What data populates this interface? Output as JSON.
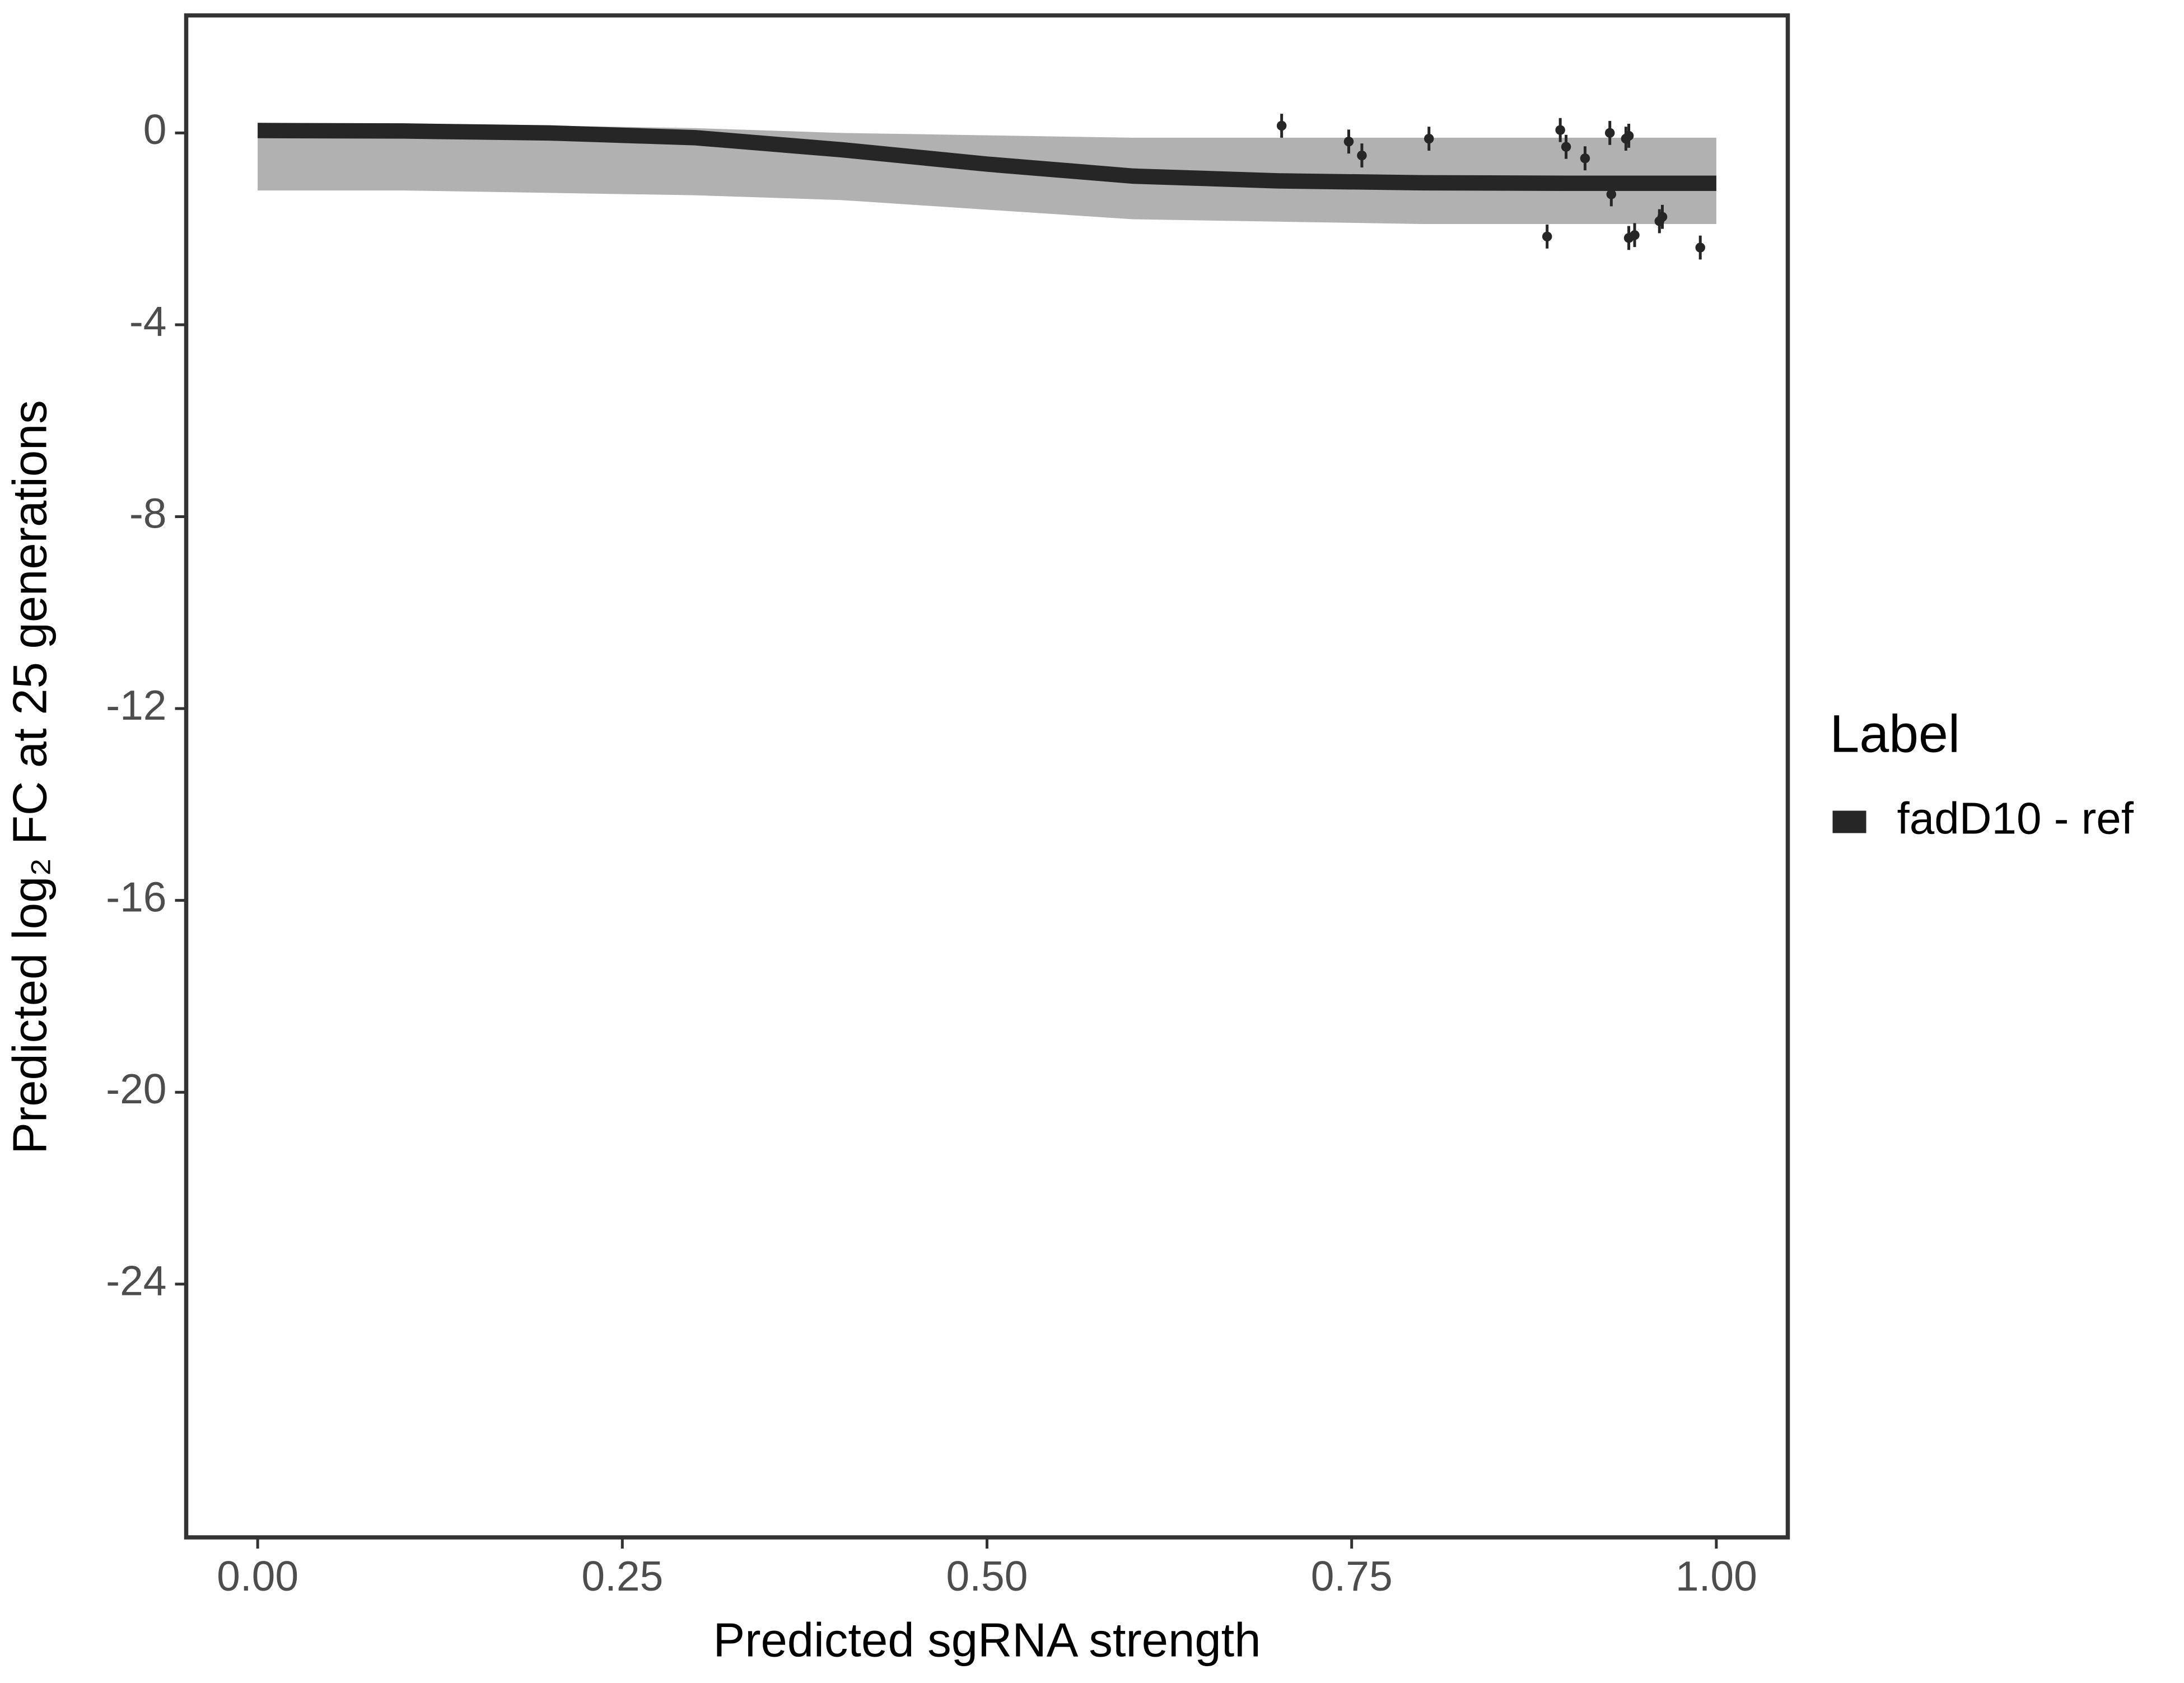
{
  "chart_data": {
    "type": "scatter",
    "x_label": "Predicted sgRNA strength",
    "y_label": "Predicted  log₂ FC at 25 generations",
    "xlim": [
      -0.049,
      1.049
    ],
    "ylim": [
      -29.28,
      2.45
    ],
    "xticks": [
      {
        "value": 0,
        "label": "0.00"
      },
      {
        "value": 0.25,
        "label": "0.25"
      },
      {
        "value": 0.5,
        "label": "0.50"
      },
      {
        "value": 0.75,
        "label": "0.75"
      },
      {
        "value": 1,
        "label": "1.00"
      }
    ],
    "yticks": [
      0,
      -4,
      -8,
      -12,
      -16,
      -20,
      -24
    ],
    "grid": false,
    "legend_title": "Label",
    "legend_position": "right",
    "band": {
      "color": "#9e9e9e",
      "x": [
        0,
        0.1,
        0.2,
        0.3,
        0.4,
        0.5,
        0.6,
        0.7,
        0.8,
        0.9,
        1.0
      ],
      "upper": [
        0.2,
        0.2,
        0.15,
        0.1,
        0.0,
        -0.05,
        -0.1,
        -0.1,
        -0.1,
        -0.1,
        -0.1
      ],
      "lower": [
        -1.2,
        -1.2,
        -1.25,
        -1.3,
        -1.4,
        -1.6,
        -1.8,
        -1.85,
        -1.9,
        -1.9,
        -1.9
      ]
    },
    "series": [
      {
        "name": "fadD10 - ref",
        "color": "#262626",
        "x": [
          0,
          0.1,
          0.2,
          0.3,
          0.4,
          0.5,
          0.6,
          0.7,
          0.8,
          0.9,
          1.0
        ],
        "values": [
          0.05,
          0.04,
          0.0,
          -0.1,
          -0.35,
          -0.65,
          -0.9,
          -1.0,
          -1.04,
          -1.05,
          -1.05
        ],
        "points": {
          "x": [
            0.702,
            0.748,
            0.757,
            0.803,
            0.884,
            0.893,
            0.897,
            0.91,
            0.927,
            0.928,
            0.938,
            0.94,
            0.94,
            0.944,
            0.961,
            0.963,
            0.989
          ],
          "values": [
            0.15,
            -0.18,
            -0.47,
            -0.12,
            -2.16,
            0.06,
            -0.29,
            -0.53,
            0.0,
            -1.28,
            -0.12,
            -0.06,
            -2.19,
            -2.13,
            -1.84,
            -1.75,
            -2.39
          ],
          "errors": [
            0.25,
            0.25,
            0.25,
            0.25,
            0.25,
            0.25,
            0.25,
            0.25,
            0.25,
            0.25,
            0.25,
            0.25,
            0.25,
            0.25,
            0.25,
            0.25,
            0.25
          ]
        }
      }
    ]
  }
}
